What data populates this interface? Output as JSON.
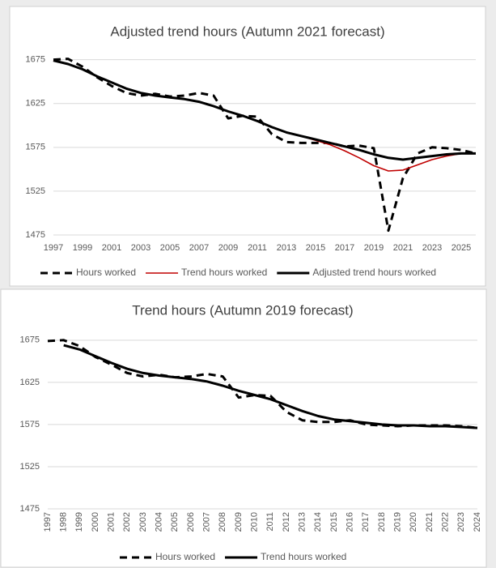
{
  "chart_data": [
    {
      "type": "line",
      "title": "Adjusted trend hours (Autumn 2021 forecast)",
      "x": [
        1997,
        1998,
        1999,
        2000,
        2001,
        2002,
        2003,
        2004,
        2005,
        2006,
        2007,
        2008,
        2009,
        2010,
        2011,
        2012,
        2013,
        2014,
        2015,
        2016,
        2017,
        2018,
        2019,
        2020,
        2021,
        2022,
        2023,
        2024,
        2025,
        2026
      ],
      "xlim": [
        1997,
        2026
      ],
      "xticks": [
        1997,
        1999,
        2001,
        2003,
        2005,
        2007,
        2009,
        2011,
        2013,
        2015,
        2017,
        2019,
        2021,
        2023,
        2025
      ],
      "ylim": [
        1475,
        1695
      ],
      "yticks": [
        1475,
        1525,
        1575,
        1625,
        1675
      ],
      "grid": true,
      "series": [
        {
          "name": "Hours worked",
          "color": "#000000",
          "style": "dashed",
          "values": [
            1675,
            1676,
            1667,
            1655,
            1645,
            1637,
            1634,
            1636,
            1633,
            1634,
            1637,
            1634,
            1608,
            1611,
            1610,
            1590,
            1581,
            1580,
            1580,
            1580,
            1576,
            1577,
            1574,
            1480,
            1540,
            1568,
            1575,
            1574,
            1572,
            1568
          ]
        },
        {
          "name": "Trend hours worked",
          "color": "#c00000",
          "style": "thin",
          "values": [
            1674,
            1670,
            1664,
            1656,
            1649,
            1642,
            1637,
            1634,
            1632,
            1630,
            1627,
            1622,
            1616,
            1611,
            1605,
            1598,
            1592,
            1588,
            1583,
            1578,
            1571,
            1563,
            1554,
            1548,
            1549,
            1555,
            1561,
            1565,
            1568,
            1568
          ]
        },
        {
          "name": "Adjusted trend hours worked",
          "color": "#000000",
          "style": "solid",
          "values": [
            1674,
            1670,
            1664,
            1656,
            1649,
            1642,
            1637,
            1634,
            1632,
            1630,
            1627,
            1622,
            1616,
            1611,
            1605,
            1598,
            1592,
            1588,
            1584,
            1580,
            1576,
            1572,
            1567,
            1563,
            1561,
            1563,
            1565,
            1567,
            1568,
            1568
          ]
        }
      ]
    },
    {
      "type": "line",
      "title": "Trend hours (Autumn 2019 forecast)",
      "x": [
        1997,
        1998,
        1999,
        2000,
        2001,
        2002,
        2003,
        2004,
        2005,
        2006,
        2007,
        2008,
        2009,
        2010,
        2011,
        2012,
        2013,
        2014,
        2015,
        2016,
        2017,
        2018,
        2019,
        2020,
        2021,
        2022,
        2023,
        2024
      ],
      "xlim": [
        1997,
        2024
      ],
      "xticks": [
        1997,
        1998,
        1999,
        2000,
        2001,
        2002,
        2003,
        2004,
        2005,
        2006,
        2007,
        2008,
        2009,
        2010,
        2011,
        2012,
        2013,
        2014,
        2015,
        2016,
        2017,
        2018,
        2019,
        2020,
        2021,
        2022,
        2023,
        2024
      ],
      "xtick_rotation": -90,
      "ylim": [
        1475,
        1695
      ],
      "yticks": [
        1475,
        1525,
        1575,
        1625,
        1675
      ],
      "grid": true,
      "series": [
        {
          "name": "Hours worked",
          "color": "#000000",
          "style": "dashed",
          "values": [
            1674,
            1675,
            1668,
            1655,
            1646,
            1636,
            1632,
            1634,
            1631,
            1632,
            1635,
            1632,
            1607,
            1610,
            1609,
            1590,
            1580,
            1578,
            1578,
            1580,
            1575,
            1574,
            1573,
            1574,
            1574,
            1574,
            1573,
            1571
          ]
        },
        {
          "name": "Trend hours worked",
          "color": "#000000",
          "style": "solid",
          "values": [
            null,
            1669,
            1664,
            1656,
            1648,
            1641,
            1636,
            1633,
            1631,
            1629,
            1626,
            1621,
            1615,
            1610,
            1605,
            1598,
            1591,
            1585,
            1581,
            1579,
            1577,
            1575,
            1574,
            1574,
            1573,
            1573,
            1572,
            1571
          ]
        }
      ]
    }
  ]
}
